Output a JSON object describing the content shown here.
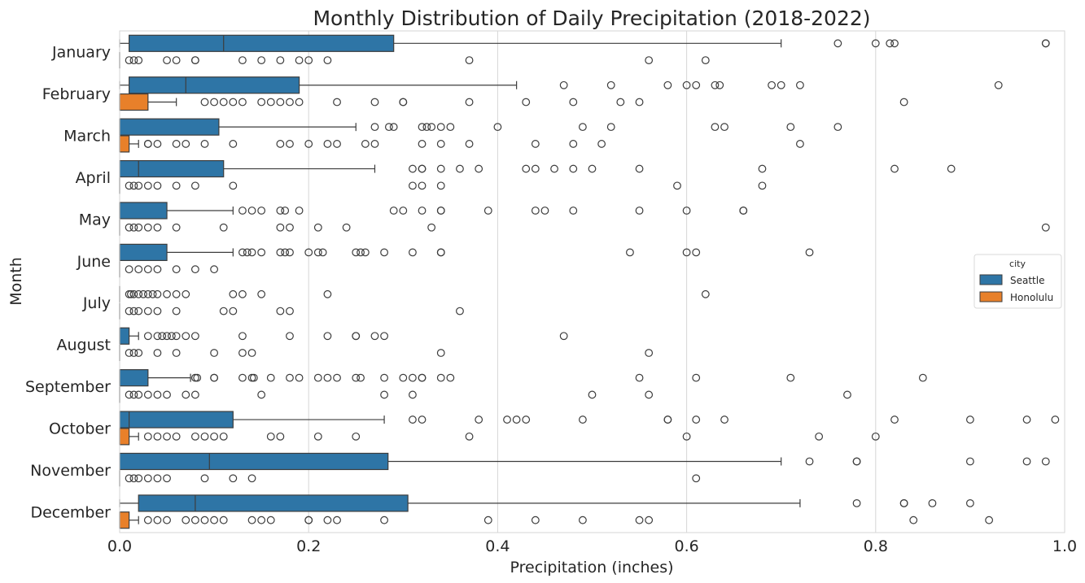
{
  "chart_data": {
    "type": "box",
    "title": "Monthly Distribution of Daily Precipitation (2018-2022)",
    "xlabel": "Precipitation (inches)",
    "ylabel": "Month",
    "xlim": [
      0.0,
      1.0
    ],
    "xticks": [
      "0.0",
      "0.2",
      "0.4",
      "0.6",
      "0.8",
      "1.0"
    ],
    "grid": "vertical",
    "legend": {
      "title": "city",
      "placement": "right"
    },
    "categories": [
      "January",
      "February",
      "March",
      "April",
      "May",
      "June",
      "July",
      "August",
      "September",
      "October",
      "November",
      "December"
    ],
    "series": [
      {
        "name": "Seattle",
        "color": "#2e75a6",
        "boxes": [
          {
            "whislo": 0.0,
            "q1": 0.01,
            "med": 0.11,
            "q3": 0.29,
            "whishi": 0.7,
            "fliers": [
              0.76,
              0.8,
              0.815,
              0.82,
              0.98,
              0.98
            ]
          },
          {
            "whislo": 0.0,
            "q1": 0.01,
            "med": 0.07,
            "q3": 0.19,
            "whishi": 0.42,
            "fliers": [
              0.47,
              0.52,
              0.58,
              0.6,
              0.61,
              0.63,
              0.635,
              0.69,
              0.7,
              0.72,
              0.93
            ]
          },
          {
            "whislo": 0.0,
            "q1": 0.0,
            "med": 0.0,
            "q3": 0.105,
            "whishi": 0.25,
            "fliers": [
              0.27,
              0.285,
              0.29,
              0.32,
              0.325,
              0.33,
              0.34,
              0.35,
              0.4,
              0.49,
              0.52,
              0.63,
              0.64,
              0.71,
              0.76
            ]
          },
          {
            "whislo": 0.0,
            "q1": 0.0,
            "med": 0.02,
            "q3": 0.11,
            "whishi": 0.27,
            "fliers": [
              0.31,
              0.32,
              0.32,
              0.34,
              0.36,
              0.38,
              0.43,
              0.44,
              0.46,
              0.48,
              0.5,
              0.55,
              0.68,
              0.82,
              0.88
            ]
          },
          {
            "whislo": 0.0,
            "q1": 0.0,
            "med": 0.0,
            "q3": 0.05,
            "whishi": 0.12,
            "fliers": [
              0.13,
              0.14,
              0.15,
              0.17,
              0.175,
              0.19,
              0.29,
              0.3,
              0.32,
              0.34,
              0.34,
              0.39,
              0.44,
              0.45,
              0.48,
              0.55,
              0.6,
              0.66,
              0.66
            ]
          },
          {
            "whislo": 0.0,
            "q1": 0.0,
            "med": 0.0,
            "q3": 0.05,
            "whishi": 0.12,
            "fliers": [
              0.13,
              0.135,
              0.14,
              0.15,
              0.17,
              0.175,
              0.18,
              0.2,
              0.21,
              0.215,
              0.25,
              0.255,
              0.26,
              0.28,
              0.31,
              0.34,
              0.34,
              0.54,
              0.6,
              0.61,
              0.73
            ]
          },
          {
            "whislo": 0.0,
            "q1": 0.0,
            "med": 0.0,
            "q3": 0.0,
            "whishi": 0.0,
            "fliers": [
              0.01,
              0.012,
              0.015,
              0.02,
              0.025,
              0.03,
              0.035,
              0.04,
              0.05,
              0.06,
              0.07,
              0.12,
              0.13,
              0.15,
              0.22,
              0.62
            ]
          },
          {
            "whislo": 0.0,
            "q1": 0.0,
            "med": 0.0,
            "q3": 0.01,
            "whishi": 0.02,
            "fliers": [
              0.03,
              0.04,
              0.045,
              0.05,
              0.055,
              0.06,
              0.07,
              0.08,
              0.13,
              0.18,
              0.22,
              0.25,
              0.25,
              0.27,
              0.28,
              0.47
            ]
          },
          {
            "whislo": 0.0,
            "q1": 0.0,
            "med": 0.0,
            "q3": 0.03,
            "whishi": 0.075,
            "fliers": [
              0.08,
              0.082,
              0.1,
              0.1,
              0.13,
              0.14,
              0.142,
              0.16,
              0.18,
              0.19,
              0.21,
              0.22,
              0.23,
              0.25,
              0.255,
              0.28,
              0.3,
              0.31,
              0.32,
              0.32,
              0.34,
              0.35,
              0.55,
              0.61,
              0.71,
              0.85
            ]
          },
          {
            "whislo": 0.0,
            "q1": 0.0,
            "med": 0.01,
            "q3": 0.12,
            "whishi": 0.28,
            "fliers": [
              0.31,
              0.32,
              0.38,
              0.41,
              0.42,
              0.43,
              0.49,
              0.58,
              0.58,
              0.61,
              0.64,
              0.82,
              0.9,
              0.96,
              0.99
            ]
          },
          {
            "whislo": 0.0,
            "q1": 0.0,
            "med": 0.095,
            "q3": 0.284,
            "whishi": 0.7,
            "fliers": [
              0.73,
              0.78,
              0.78,
              0.9,
              0.96,
              0.98
            ]
          },
          {
            "whislo": 0.0,
            "q1": 0.02,
            "med": 0.08,
            "q3": 0.305,
            "whishi": 0.72,
            "fliers": [
              0.78,
              0.83,
              0.83,
              0.86,
              0.9
            ]
          }
        ]
      },
      {
        "name": "Honolulu",
        "color": "#e8802a",
        "boxes": [
          {
            "whislo": 0.0,
            "q1": 0.0,
            "med": 0.0,
            "q3": 0.0,
            "whishi": 0.0,
            "fliers": [
              0.01,
              0.015,
              0.02,
              0.05,
              0.06,
              0.08,
              0.08,
              0.13,
              0.15,
              0.17,
              0.19,
              0.2,
              0.22,
              0.37,
              0.56,
              0.62
            ]
          },
          {
            "whislo": 0.0,
            "q1": 0.0,
            "med": 0.0,
            "q3": 0.03,
            "whishi": 0.06,
            "fliers": [
              0.09,
              0.1,
              0.11,
              0.12,
              0.13,
              0.15,
              0.16,
              0.17,
              0.18,
              0.19,
              0.23,
              0.27,
              0.3,
              0.3,
              0.37,
              0.43,
              0.48,
              0.53,
              0.55,
              0.83
            ]
          },
          {
            "whislo": 0.0,
            "q1": 0.0,
            "med": 0.0,
            "q3": 0.01,
            "whishi": 0.02,
            "fliers": [
              0.03,
              0.03,
              0.04,
              0.06,
              0.07,
              0.09,
              0.12,
              0.17,
              0.18,
              0.2,
              0.22,
              0.23,
              0.26,
              0.27,
              0.32,
              0.34,
              0.37,
              0.44,
              0.48,
              0.51,
              0.72
            ]
          },
          {
            "whislo": 0.0,
            "q1": 0.0,
            "med": 0.0,
            "q3": 0.0,
            "whishi": 0.0,
            "fliers": [
              0.01,
              0.015,
              0.02,
              0.03,
              0.04,
              0.06,
              0.08,
              0.12,
              0.31,
              0.32,
              0.34,
              0.59,
              0.68
            ]
          },
          {
            "whislo": 0.0,
            "q1": 0.0,
            "med": 0.0,
            "q3": 0.0,
            "whishi": 0.0,
            "fliers": [
              0.01,
              0.015,
              0.02,
              0.03,
              0.04,
              0.06,
              0.11,
              0.17,
              0.18,
              0.21,
              0.24,
              0.33,
              0.98
            ]
          },
          {
            "whislo": 0.0,
            "q1": 0.0,
            "med": 0.0,
            "q3": 0.0,
            "whishi": 0.0,
            "fliers": [
              0.01,
              0.02,
              0.03,
              0.04,
              0.06,
              0.08,
              0.1
            ]
          },
          {
            "whislo": 0.0,
            "q1": 0.0,
            "med": 0.0,
            "q3": 0.0,
            "whishi": 0.0,
            "fliers": [
              0.01,
              0.015,
              0.02,
              0.03,
              0.04,
              0.06,
              0.11,
              0.12,
              0.17,
              0.18,
              0.36
            ]
          },
          {
            "whislo": 0.0,
            "q1": 0.0,
            "med": 0.0,
            "q3": 0.0,
            "whishi": 0.0,
            "fliers": [
              0.01,
              0.015,
              0.02,
              0.04,
              0.06,
              0.1,
              0.13,
              0.14,
              0.34,
              0.56
            ]
          },
          {
            "whislo": 0.0,
            "q1": 0.0,
            "med": 0.0,
            "q3": 0.0,
            "whishi": 0.0,
            "fliers": [
              0.01,
              0.015,
              0.02,
              0.03,
              0.04,
              0.05,
              0.07,
              0.08,
              0.15,
              0.28,
              0.31,
              0.5,
              0.56,
              0.77
            ]
          },
          {
            "whislo": 0.0,
            "q1": 0.0,
            "med": 0.0,
            "q3": 0.01,
            "whishi": 0.02,
            "fliers": [
              0.03,
              0.04,
              0.05,
              0.06,
              0.08,
              0.09,
              0.1,
              0.11,
              0.16,
              0.17,
              0.21,
              0.25,
              0.37,
              0.6,
              0.74,
              0.8
            ]
          },
          {
            "whislo": 0.0,
            "q1": 0.0,
            "med": 0.0,
            "q3": 0.0,
            "whishi": 0.0,
            "fliers": [
              0.01,
              0.015,
              0.02,
              0.03,
              0.04,
              0.05,
              0.09,
              0.12,
              0.14,
              0.61
            ]
          },
          {
            "whislo": 0.0,
            "q1": 0.0,
            "med": 0.0,
            "q3": 0.01,
            "whishi": 0.02,
            "fliers": [
              0.03,
              0.04,
              0.05,
              0.07,
              0.08,
              0.09,
              0.1,
              0.11,
              0.14,
              0.15,
              0.16,
              0.2,
              0.2,
              0.22,
              0.23,
              0.28,
              0.39,
              0.44,
              0.49,
              0.55,
              0.56,
              0.84,
              0.92
            ]
          }
        ]
      }
    ]
  }
}
